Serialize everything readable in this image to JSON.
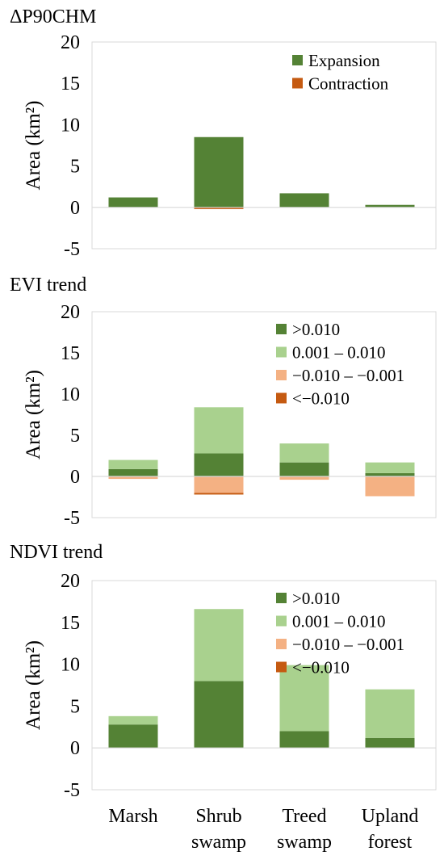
{
  "figure": {
    "colors": {
      "expansion": "#548235",
      "contraction": "#C55A11",
      "dark_green": "#548235",
      "light_green": "#A9D18E",
      "light_orange": "#F4B183",
      "dark_orange": "#C55A11",
      "axis": "#D9D9D9"
    }
  },
  "chart_data": [
    {
      "type": "bar",
      "stacked": true,
      "title": "ΔP90CHM",
      "ylabel": "Area (km²)",
      "ylim": [
        -5,
        20
      ],
      "yticks": [
        20,
        15,
        10,
        5,
        0,
        -5
      ],
      "categories": [
        "Marsh",
        "Shrub swamp",
        "Treed swamp",
        "Upland forest"
      ],
      "show_category_labels": false,
      "legend_position": "top-right",
      "series": [
        {
          "name": "Expansion",
          "color": "#548235",
          "values": [
            1.2,
            8.5,
            1.7,
            0.3
          ]
        },
        {
          "name": "Contraction",
          "color": "#C55A11",
          "values": [
            0,
            -0.2,
            0,
            0
          ]
        }
      ]
    },
    {
      "type": "bar",
      "stacked": true,
      "title": "EVI trend",
      "ylabel": "Area (km²)",
      "ylim": [
        -5,
        20
      ],
      "yticks": [
        20,
        15,
        10,
        5,
        0,
        -5
      ],
      "categories": [
        "Marsh",
        "Shrub swamp",
        "Treed swamp",
        "Upland forest"
      ],
      "show_category_labels": false,
      "legend_position": "top-right",
      "series": [
        {
          "name": ">0.010",
          "color": "#548235",
          "values": [
            0.9,
            2.8,
            1.7,
            0.4
          ]
        },
        {
          "name": "0.001 – 0.010",
          "color": "#A9D18E",
          "values": [
            1.1,
            5.6,
            2.3,
            1.3
          ]
        },
        {
          "name": "−0.010 – −0.001",
          "color": "#F4B183",
          "values": [
            -0.3,
            -2.0,
            -0.4,
            -2.4
          ]
        },
        {
          "name": "<−0.010",
          "color": "#C55A11",
          "values": [
            0,
            -0.2,
            0,
            0
          ]
        }
      ]
    },
    {
      "type": "bar",
      "stacked": true,
      "title": "NDVI trend",
      "ylabel": "Area (km²)",
      "ylim": [
        -5,
        20
      ],
      "yticks": [
        20,
        15,
        10,
        5,
        0,
        -5
      ],
      "categories": [
        "Marsh",
        "Shrub swamp",
        "Treed swamp",
        "Upland forest"
      ],
      "category_lines": [
        [
          "Marsh"
        ],
        [
          "Shrub",
          "swamp"
        ],
        [
          "Treed",
          "swamp"
        ],
        [
          "Upland",
          "forest"
        ]
      ],
      "show_category_labels": true,
      "legend_position": "top-right",
      "series": [
        {
          "name": ">0.010",
          "color": "#548235",
          "values": [
            2.8,
            8.0,
            2.0,
            1.2
          ]
        },
        {
          "name": "0.001 – 0.010",
          "color": "#A9D18E",
          "values": [
            1.0,
            8.6,
            7.9,
            5.8
          ]
        },
        {
          "name": "−0.010 – −0.001",
          "color": "#F4B183",
          "values": [
            0,
            0,
            0,
            0
          ]
        },
        {
          "name": "<−0.010",
          "color": "#C55A11",
          "values": [
            0,
            0,
            0,
            0
          ]
        }
      ]
    }
  ]
}
